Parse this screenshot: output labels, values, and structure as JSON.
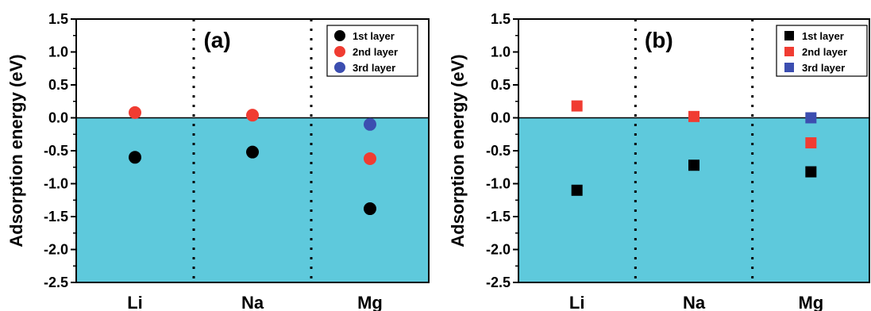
{
  "chart_data": [
    {
      "type": "scatter",
      "panel_label": "(a)",
      "marker": "circle",
      "categories": [
        "Li",
        "Na",
        "Mg"
      ],
      "ylabel": "Adsorption energy (eV)",
      "ylim": [
        -2.5,
        1.5
      ],
      "yticks": [
        "1.5",
        "1.0",
        "0.5",
        "0.0",
        "-0.5",
        "-1.0",
        "-1.5",
        "-2.0",
        "-2.5"
      ],
      "shade_below": 0,
      "legend_position": "top-right",
      "series": [
        {
          "name": "1st layer",
          "color": "#000000",
          "values": [
            -0.6,
            -0.52,
            -1.38
          ]
        },
        {
          "name": "2nd layer",
          "color": "#f03c32",
          "values": [
            0.08,
            0.04,
            -0.62
          ]
        },
        {
          "name": "3rd layer",
          "color": "#3c4eb0",
          "values": [
            null,
            null,
            -0.1
          ]
        }
      ]
    },
    {
      "type": "scatter",
      "panel_label": "(b)",
      "marker": "square",
      "categories": [
        "Li",
        "Na",
        "Mg"
      ],
      "ylabel": "Adsorption energy (eV)",
      "ylim": [
        -2.5,
        1.5
      ],
      "yticks": [
        "1.5",
        "1.0",
        "0.5",
        "0.0",
        "-0.5",
        "-1.0",
        "-1.5",
        "-2.0",
        "-2.5"
      ],
      "shade_below": 0,
      "legend_position": "top-right",
      "series": [
        {
          "name": "1st layer",
          "color": "#000000",
          "values": [
            -1.1,
            -0.72,
            -0.82
          ]
        },
        {
          "name": "2nd layer",
          "color": "#f03c32",
          "values": [
            0.18,
            0.02,
            -0.38
          ]
        },
        {
          "name": "3rd layer",
          "color": "#3c4eb0",
          "values": [
            null,
            null,
            0.0
          ]
        }
      ]
    }
  ],
  "colors": {
    "shade": "#5ec9dc",
    "axis": "#000000"
  }
}
